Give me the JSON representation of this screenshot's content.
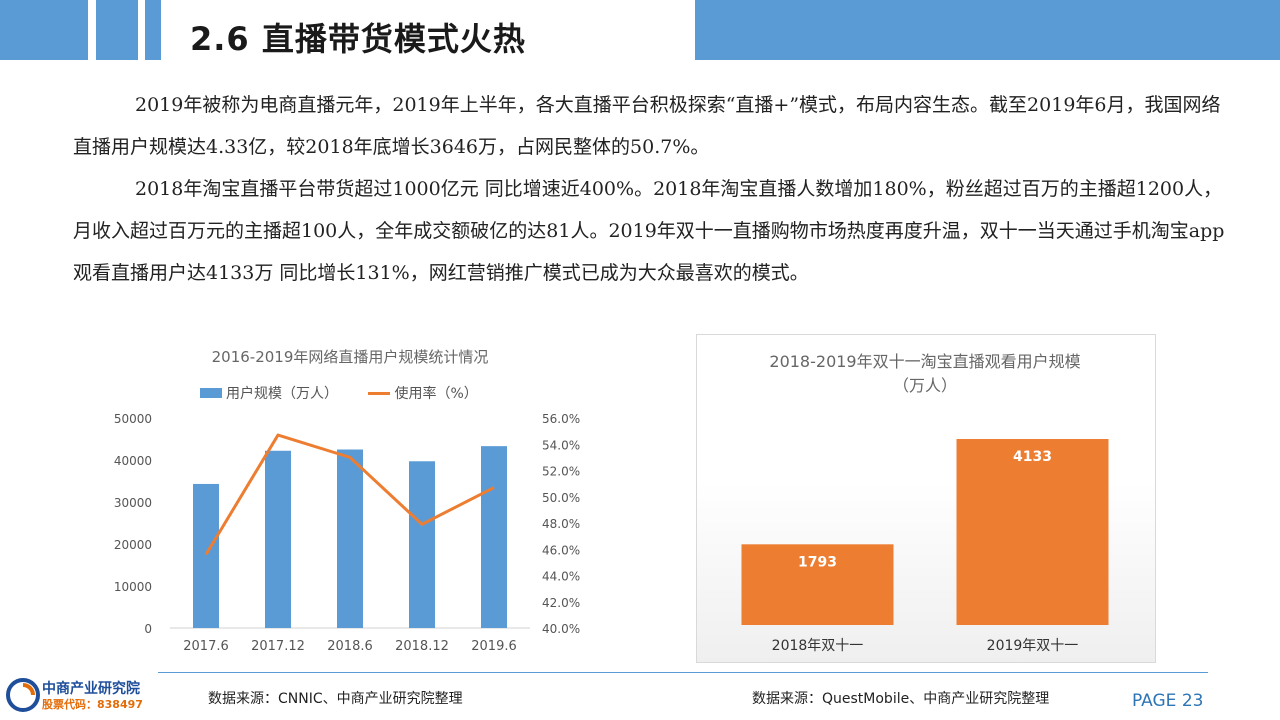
{
  "header": {
    "title": "2.6 直播带货模式火热"
  },
  "body": {
    "paragraph1": "2019年被称为电商直播元年，2019年上半年，各大直播平台积极探索“直播+”模式，布局内容生态。截至2019年6月，我国网络直播用户规模达4.33亿，较2018年底增长3646万，占网民整体的50.7%。",
    "paragraph2": "2018年淘宝直播平台带货超过1000亿元 同比增速近400%。2018年淘宝直播人数增加180%，粉丝超过百万的主播超1200人，月收入超过百万元的主播超100人，全年成交额破亿的达81人。2019年双十一直播购物市场热度再度升温，双十一当天通过手机淘宝app观看直播用户达4133万 同比增长131%，网红营销推广模式已成为大众最喜欢的模式。"
  },
  "chart_data": [
    {
      "type": "bar",
      "title": "2016-2019年网络直播用户规模统计情况",
      "categories": [
        "2017.6",
        "2017.12",
        "2018.6",
        "2018.12",
        "2019.6"
      ],
      "series": [
        {
          "name": "用户规模（万人）",
          "type": "bar",
          "axis": "left",
          "values": [
            34300,
            42200,
            42500,
            39700,
            43300
          ],
          "color": "#5b9bd5"
        },
        {
          "name": "使用率（%）",
          "type": "line",
          "axis": "right",
          "values": [
            45.6,
            54.7,
            53.0,
            47.9,
            50.7
          ],
          "color": "#ed7d31"
        }
      ],
      "y_left": {
        "range": [
          0,
          50000
        ],
        "ticks": [
          "0",
          "10000",
          "20000",
          "30000",
          "40000",
          "50000"
        ]
      },
      "y_right": {
        "range": [
          40.0,
          56.0
        ],
        "ticks": [
          "40.0%",
          "42.0%",
          "44.0%",
          "46.0%",
          "48.0%",
          "50.0%",
          "52.0%",
          "54.0%",
          "56.0%"
        ]
      },
      "legend": "top",
      "source": "数据来源：CNNIC、中商产业研究院整理"
    },
    {
      "type": "bar",
      "title": "2018-2019年双十一淘宝直播观看用户规模",
      "subtitle": "（万人）",
      "categories": [
        "2018年双十一",
        "2019年双十一"
      ],
      "values": [
        1793,
        4133
      ],
      "labels": [
        "1793",
        "4133"
      ],
      "color": "#ed7d31",
      "ylim": [
        0,
        5000
      ],
      "source": "数据来源：QuestMobile、中商产业研究院整理"
    }
  ],
  "footer": {
    "logo_name": "中商产业研究院",
    "logo_code": "股票代码：838497",
    "page": "PAGE 23",
    "colors": {
      "accent": "#5b9bd5",
      "orange": "#ed7d31",
      "page": "#2e75b6"
    }
  }
}
